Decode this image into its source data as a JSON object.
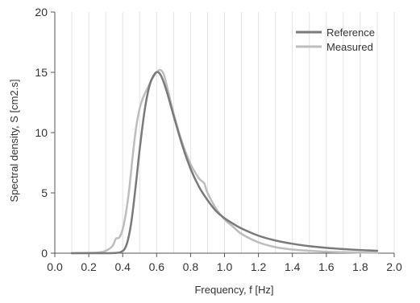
{
  "chart_data": {
    "type": "line",
    "title": "",
    "xlabel": "Frequency, f [Hz]",
    "ylabel": "Spectral density, S [cm2.s]",
    "xlim": [
      0.0,
      2.0
    ],
    "ylim": [
      0,
      20
    ],
    "x_ticks": [
      "0.0",
      "0.2",
      "0.4",
      "0.6",
      "0.8",
      "1.0",
      "1.2",
      "1.4",
      "1.6",
      "1.8",
      "2.0"
    ],
    "y_ticks": [
      "0",
      "5",
      "10",
      "15",
      "20"
    ],
    "grid": "vertical",
    "legend_position": "top-right",
    "series": [
      {
        "name": "Reference",
        "color": "#7a7a7a",
        "x": [
          0.1,
          0.3,
          0.38,
          0.42,
          0.45,
          0.48,
          0.5,
          0.53,
          0.56,
          0.59,
          0.61,
          0.63,
          0.66,
          0.7,
          0.75,
          0.8,
          0.85,
          0.9,
          0.95,
          1.0,
          1.05,
          1.1,
          1.2,
          1.3,
          1.4,
          1.5,
          1.6,
          1.7,
          1.8,
          1.9
        ],
        "y": [
          0,
          0,
          0.05,
          0.6,
          2.5,
          6.0,
          8.6,
          11.9,
          14.0,
          14.9,
          15.0,
          14.6,
          13.4,
          11.4,
          9.0,
          7.0,
          5.5,
          4.4,
          3.5,
          2.9,
          2.45,
          2.05,
          1.45,
          1.05,
          0.78,
          0.58,
          0.44,
          0.34,
          0.26,
          0.2
        ]
      },
      {
        "name": "Measured",
        "color": "#bdbdbd",
        "x": [
          0.1,
          0.25,
          0.3,
          0.34,
          0.36,
          0.38,
          0.4,
          0.42,
          0.44,
          0.46,
          0.48,
          0.5,
          0.52,
          0.55,
          0.58,
          0.6,
          0.62,
          0.64,
          0.66,
          0.7,
          0.75,
          0.8,
          0.85,
          0.88,
          0.9,
          0.95,
          1.0,
          1.05,
          1.1,
          1.2,
          1.3,
          1.4,
          1.5,
          1.6,
          1.7,
          1.8,
          1.9
        ],
        "y": [
          0,
          0.05,
          0.2,
          0.6,
          1.2,
          1.3,
          2.0,
          3.4,
          5.5,
          8.2,
          10.5,
          12.0,
          12.9,
          13.8,
          14.6,
          15.0,
          15.2,
          14.9,
          13.9,
          11.6,
          9.2,
          7.4,
          6.2,
          5.8,
          5.0,
          3.7,
          2.8,
          2.2,
          1.6,
          0.9,
          0.5,
          0.3,
          0.2,
          0.12,
          0.08,
          0.05,
          0.03
        ]
      }
    ]
  }
}
